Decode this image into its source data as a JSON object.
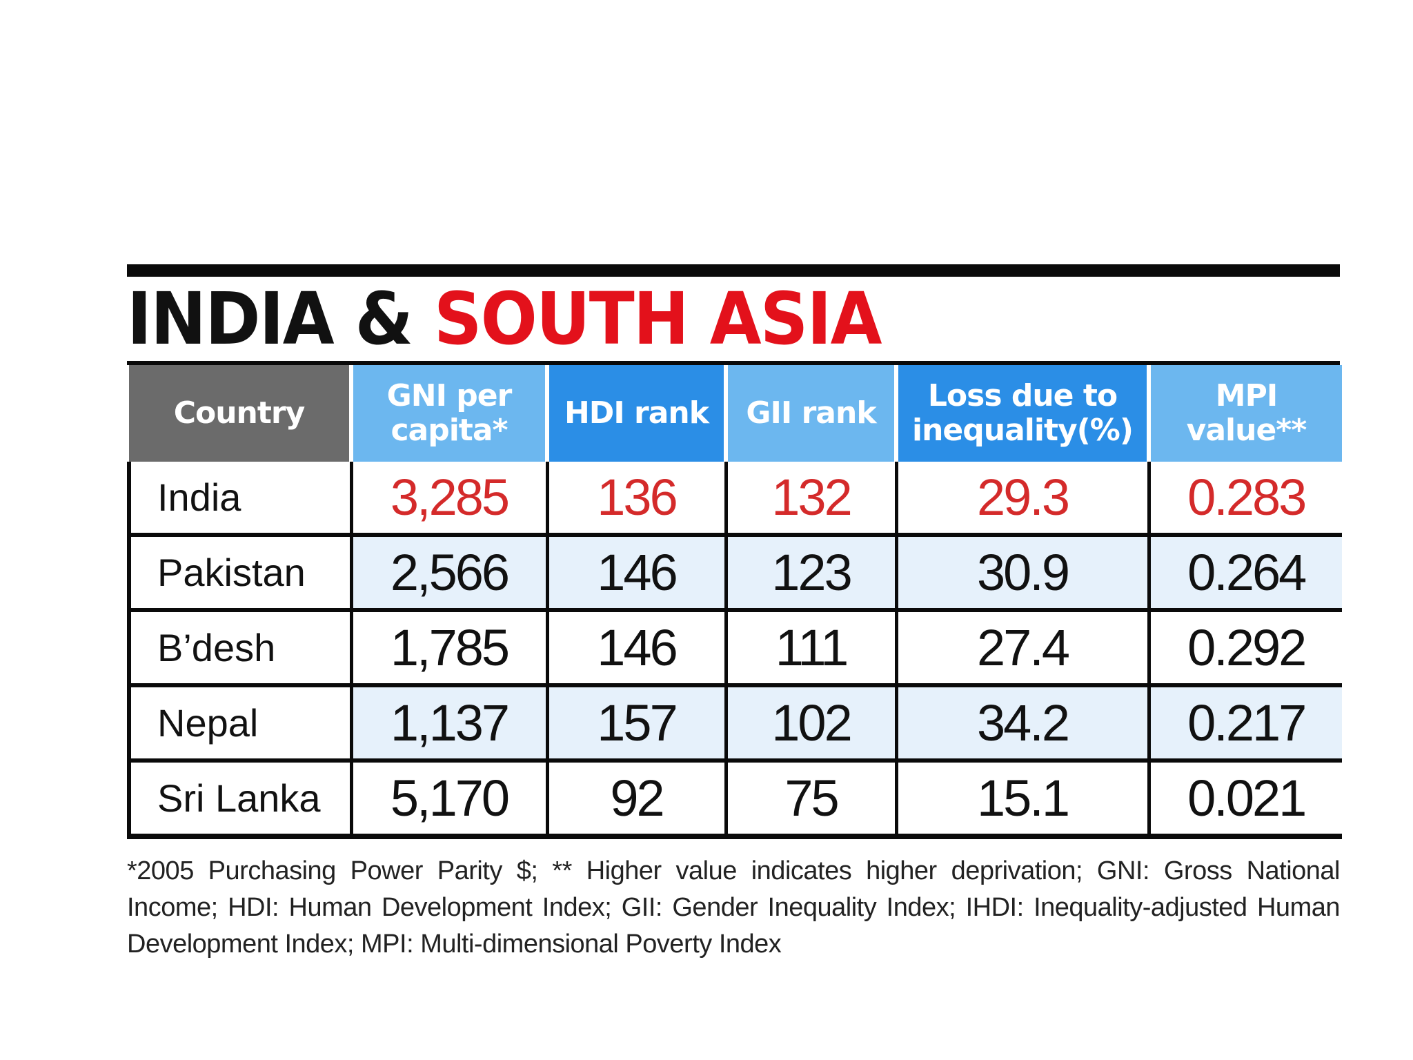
{
  "title": {
    "part1": "INDIA & ",
    "part2": "SOUTH ASIA"
  },
  "colors": {
    "title_accent": "#e3111b",
    "header_country": "#6b6b6b",
    "header_light_blue": "#6cb7ef",
    "header_dark_blue": "#2b8ee6",
    "highlight_text": "#d42a2a",
    "stripe": "#e6f1fb"
  },
  "chart_data": {
    "type": "table",
    "title": "INDIA & SOUTH ASIA",
    "columns": [
      {
        "key": "country",
        "label": "Country"
      },
      {
        "key": "gni",
        "label": "GNI per capita*"
      },
      {
        "key": "hdi",
        "label": "HDI rank"
      },
      {
        "key": "gii",
        "label": "GII rank"
      },
      {
        "key": "loss",
        "label": "Loss due to inequality(%)"
      },
      {
        "key": "mpi",
        "label": "MPI value**"
      }
    ],
    "rows": [
      {
        "country": "India",
        "gni": "3,285",
        "hdi": "136",
        "gii": "132",
        "loss": "29.3",
        "mpi": "0.283",
        "highlight": true
      },
      {
        "country": "Pakistan",
        "gni": "2,566",
        "hdi": "146",
        "gii": "123",
        "loss": "30.9",
        "mpi": "0.264"
      },
      {
        "country": "B’desh",
        "gni": "1,785",
        "hdi": "146",
        "gii": "111",
        "loss": "27.4",
        "mpi": "0.292"
      },
      {
        "country": "Nepal",
        "gni": "1,137",
        "hdi": "157",
        "gii": "102",
        "loss": "34.2",
        "mpi": "0.217"
      },
      {
        "country": "Sri Lanka",
        "gni": "5,170",
        "hdi": "92",
        "gii": "75",
        "loss": "15.1",
        "mpi": "0.021"
      }
    ],
    "footnote": "*2005 Purchasing Power Parity $; ** Higher value indicates higher deprivation; GNI: Gross National Income; HDI: Human Development Index; GII: Gender Inequality Index; IHDI: Inequality-adjusted Human Development Index; MPI: Multi-dimensional Poverty Index"
  }
}
